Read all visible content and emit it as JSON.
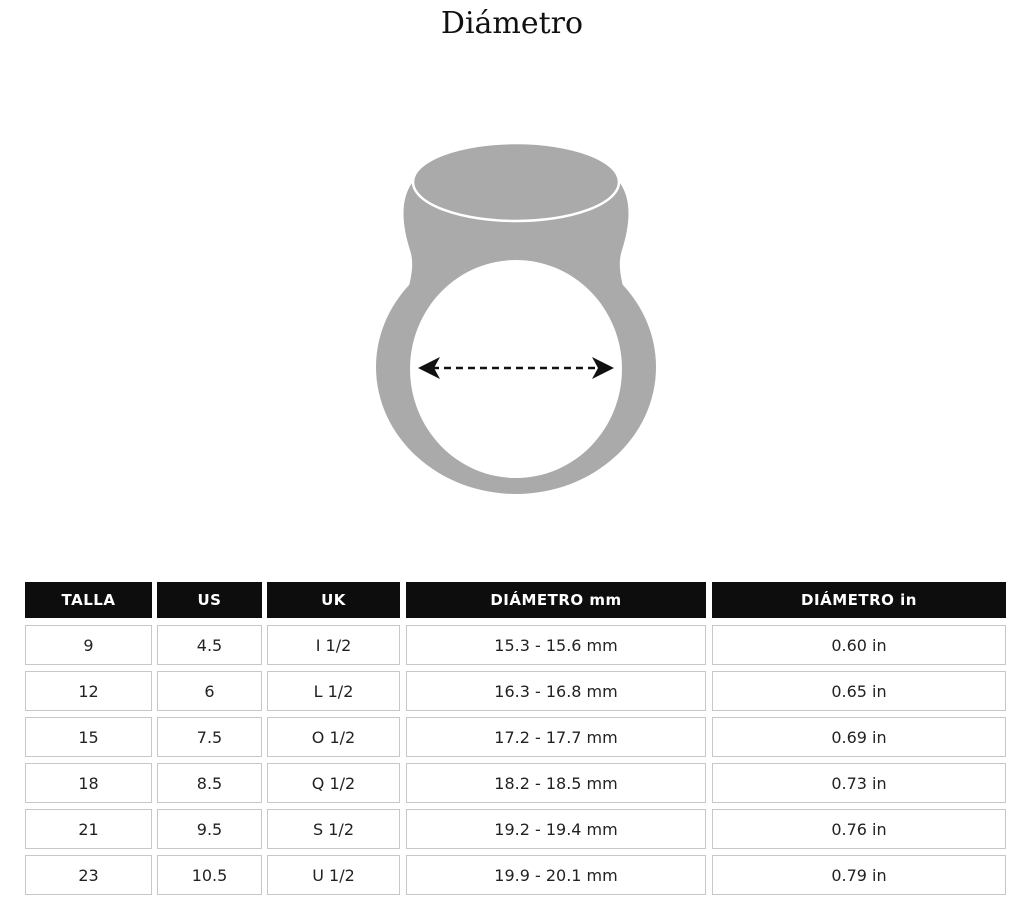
{
  "title": "Diámetro",
  "ring_color": "#aaaaaa",
  "table": {
    "headers": [
      "TALLA",
      "US",
      "UK",
      "DIÁMETRO mm",
      "DIÁMETRO in"
    ],
    "rows": [
      [
        "9",
        "4.5",
        "I 1/2",
        "15.3 - 15.6 mm",
        "0.60 in"
      ],
      [
        "12",
        "6",
        "L 1/2",
        "16.3 - 16.8 mm",
        "0.65 in"
      ],
      [
        "15",
        "7.5",
        "O 1/2",
        "17.2 - 17.7 mm",
        "0.69 in"
      ],
      [
        "18",
        "8.5",
        "Q 1/2",
        "18.2 - 18.5 mm",
        "0.73 in"
      ],
      [
        "21",
        "9.5",
        "S 1/2",
        "19.2 - 19.4 mm",
        "0.76 in"
      ],
      [
        "23",
        "10.5",
        "U 1/2",
        "19.9 - 20.1 mm",
        "0.79 in"
      ]
    ]
  }
}
